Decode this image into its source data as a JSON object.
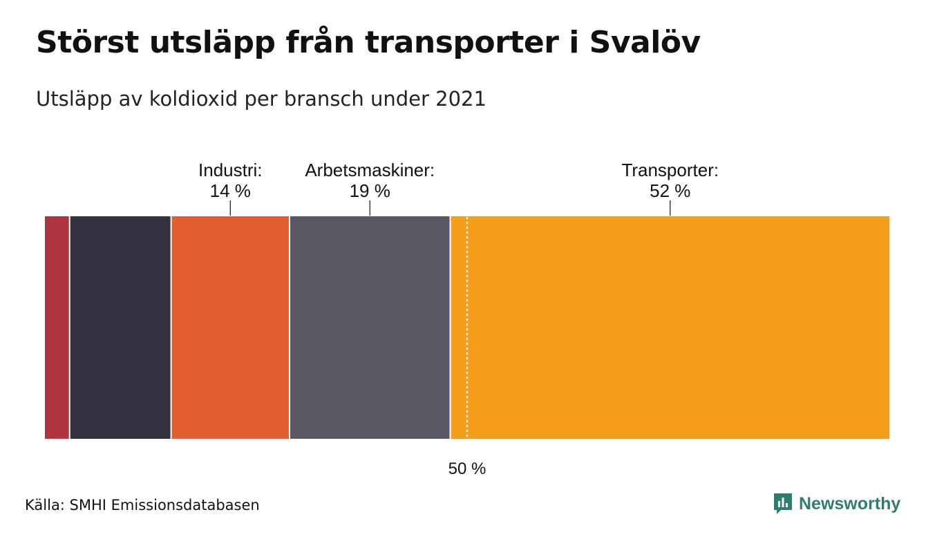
{
  "title": "Störst utsläpp från transporter i Svalöv",
  "subtitle": "Utsläpp av koldioxid per bransch under 2021",
  "source": "Källa: SMHI Emissionsdatabasen",
  "brand": "Newsworthy",
  "colors": {
    "brand": "#2e7d6e"
  },
  "chart_data": {
    "type": "bar",
    "orientation": "horizontal-stacked-100",
    "title": "Störst utsläpp från transporter i Svalöv",
    "subtitle": "Utsläpp av koldioxid per bransch under 2021",
    "unit": "%",
    "xlim": [
      0,
      100
    ],
    "reference_line": {
      "value": 50,
      "label": "50 %",
      "style": "dotted"
    },
    "series": [
      {
        "name": "",
        "value": 3,
        "color": "#b03340",
        "labelled": false
      },
      {
        "name": "",
        "value": 12,
        "color": "#33313f",
        "labelled": false
      },
      {
        "name": "Industri:",
        "value": 14,
        "display": "14 %",
        "color": "#e05e2f",
        "labelled": true
      },
      {
        "name": "Arbetsmaskiner:",
        "value": 19,
        "display": "19 %",
        "color": "#5a5765",
        "labelled": true
      },
      {
        "name": "Transporter:",
        "value": 52,
        "display": "52 %",
        "color": "#f59e1b",
        "labelled": true
      }
    ]
  }
}
